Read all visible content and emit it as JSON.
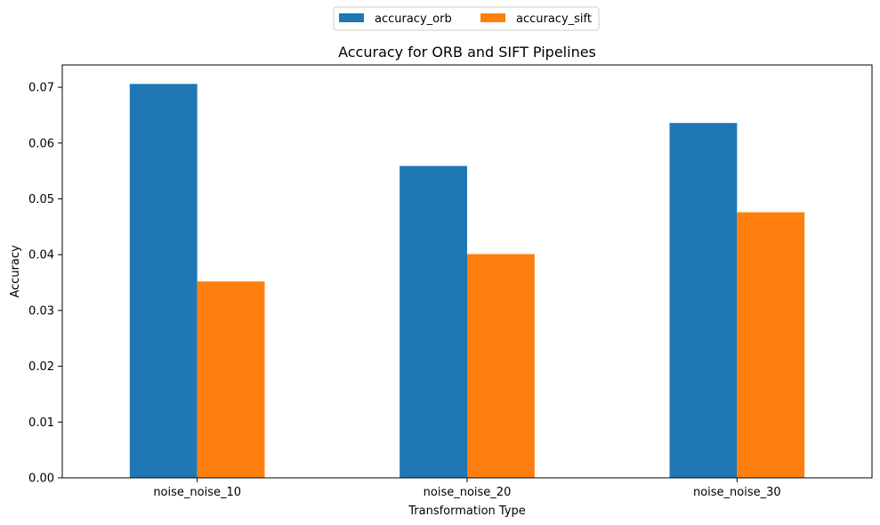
{
  "chart_data": {
    "type": "bar",
    "title": "Accuracy for ORB and SIFT Pipelines",
    "xlabel": "Transformation Type",
    "ylabel": "Accuracy",
    "categories": [
      "noise_noise_10",
      "noise_noise_20",
      "noise_noise_30"
    ],
    "series": [
      {
        "name": "accuracy_orb",
        "color": "#1f77b4",
        "values": [
          0.0706,
          0.0559,
          0.0636
        ]
      },
      {
        "name": "accuracy_sift",
        "color": "#ff7f0e",
        "values": [
          0.0352,
          0.0401,
          0.0476
        ]
      }
    ],
    "ylim": [
      0,
      0.074
    ],
    "yticks": [
      0.0,
      0.01,
      0.02,
      0.03,
      0.04,
      0.05,
      0.06,
      0.07
    ],
    "ytick_labels": [
      "0.00",
      "0.01",
      "0.02",
      "0.03",
      "0.04",
      "0.05",
      "0.06",
      "0.07"
    ],
    "legend_position": "top-center (outside plot)",
    "grid": false
  }
}
